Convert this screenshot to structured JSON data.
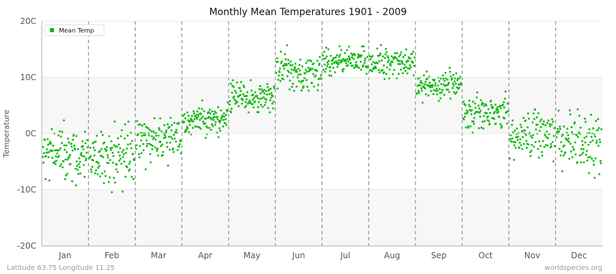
{
  "chart_data": {
    "type": "scatter",
    "title": "Monthly Mean Temperatures 1901 - 2009",
    "ylabel": "Temperature",
    "xlabel": "",
    "categories": [
      "Jan",
      "Feb",
      "Mar",
      "Apr",
      "May",
      "Jun",
      "Jul",
      "Aug",
      "Sep",
      "Oct",
      "Nov",
      "Dec"
    ],
    "ylim": [
      -20,
      20
    ],
    "yticks": [
      -20,
      -10,
      0,
      10,
      20
    ],
    "ytick_labels": [
      "-20C",
      "-10C",
      "0C",
      "10C",
      "20C"
    ],
    "legend": {
      "position": "top-left",
      "entries": [
        "Mean Temp"
      ]
    },
    "series": [
      {
        "name": "Mean Temp",
        "color": "#11bb11",
        "n_per_month": 109,
        "month_stats": [
          {
            "month": "Jan",
            "mean": -3.5,
            "min": -10.5,
            "max": 2.5
          },
          {
            "month": "Feb",
            "mean": -3.5,
            "min": -11.0,
            "max": 2.5
          },
          {
            "month": "Mar",
            "mean": -1.0,
            "min": -7.5,
            "max": 3.0
          },
          {
            "month": "Apr",
            "mean": 2.5,
            "min": -1.0,
            "max": 6.0
          },
          {
            "month": "May",
            "mean": 6.5,
            "min": 3.0,
            "max": 10.5
          },
          {
            "month": "Jun",
            "mean": 11.0,
            "min": 7.5,
            "max": 16.0
          },
          {
            "month": "Jul",
            "mean": 13.0,
            "min": 10.0,
            "max": 17.0
          },
          {
            "month": "Aug",
            "mean": 12.5,
            "min": 9.5,
            "max": 16.5
          },
          {
            "month": "Sep",
            "mean": 8.5,
            "min": 5.5,
            "max": 12.0
          },
          {
            "month": "Oct",
            "mean": 3.5,
            "min": 0.0,
            "max": 8.5
          },
          {
            "month": "Nov",
            "mean": -0.5,
            "min": -5.5,
            "max": 5.0
          },
          {
            "month": "Dec",
            "mean": -2.0,
            "min": -9.0,
            "max": 4.5
          }
        ]
      }
    ],
    "grid": true,
    "background_bands": [
      "#f7f7f7",
      "#ffffff"
    ],
    "month_separators": "dashed"
  },
  "footer": {
    "left": "Latitude 63.75 Longitude 11.25",
    "right": "worldspecies.org"
  }
}
